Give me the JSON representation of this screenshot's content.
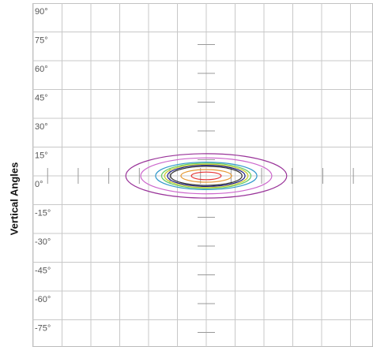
{
  "chart_data": {
    "type": "isocandela-contour",
    "ylabel": "Vertical Angles",
    "xlabel": "",
    "title": "",
    "ylim": [
      -90,
      90
    ],
    "y_ticks": [
      "90°",
      "75°",
      "60°",
      "45°",
      "30°",
      "15°",
      "0°",
      "-15°",
      "-30°",
      "-45°",
      "-60°",
      "-75°"
    ],
    "y_tick_values": [
      90,
      75,
      60,
      45,
      30,
      15,
      0,
      -15,
      -30,
      -45,
      -60,
      -75
    ],
    "grid": true,
    "center": {
      "h": 0,
      "v": 0
    },
    "contours": [
      {
        "color": "#993399",
        "h_half_width": 27,
        "v_half_height": 10.5
      },
      {
        "color": "#cc66cc",
        "h_half_width": 22,
        "v_half_height": 8.5
      },
      {
        "color": "#3399cc",
        "h_half_width": 17,
        "v_half_height": 6.5
      },
      {
        "color": "#66cc66",
        "h_half_width": 15,
        "v_half_height": 6
      },
      {
        "color": "#cccc33",
        "h_half_width": 14,
        "v_half_height": 5.5
      },
      {
        "color": "#1a1a80",
        "h_half_width": 13,
        "v_half_height": 5
      },
      {
        "color": "#333333",
        "h_half_width": 12,
        "v_half_height": 4.5
      },
      {
        "color": "#e69933",
        "h_half_width": 8.5,
        "v_half_height": 3
      },
      {
        "color": "#e63333",
        "h_half_width": 5,
        "v_half_height": 1.8
      }
    ]
  }
}
